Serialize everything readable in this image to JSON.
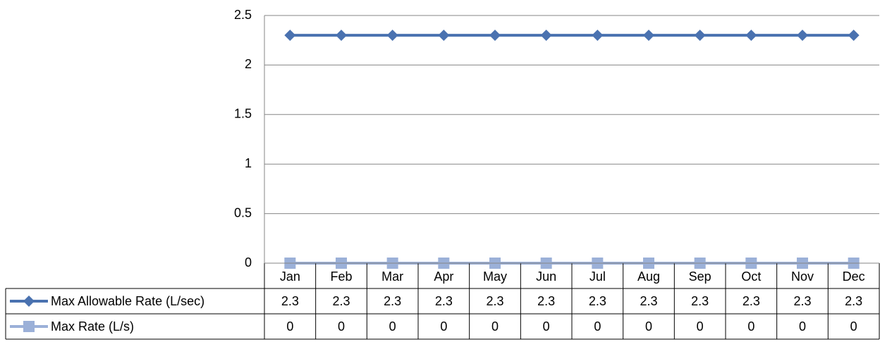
{
  "chart_data": {
    "type": "line",
    "categories": [
      "Jan",
      "Feb",
      "Mar",
      "Apr",
      "May",
      "Jun",
      "Jul",
      "Aug",
      "Sep",
      "Oct",
      "Nov",
      "Dec"
    ],
    "series": [
      {
        "name": "Max Allowable Rate (L/sec)",
        "color": "#4a72b0",
        "marker": "diamond",
        "values": [
          2.3,
          2.3,
          2.3,
          2.3,
          2.3,
          2.3,
          2.3,
          2.3,
          2.3,
          2.3,
          2.3,
          2.3
        ]
      },
      {
        "name": "Max Rate (L/s)",
        "color": "#9bb0d8",
        "marker": "square",
        "values": [
          0,
          0,
          0,
          0,
          0,
          0,
          0,
          0,
          0,
          0,
          0,
          0
        ]
      }
    ],
    "ylim": [
      0,
      2.5
    ],
    "yticks": [
      0,
      0.5,
      1,
      1.5,
      2,
      2.5
    ],
    "grid": true,
    "data_table": true
  }
}
